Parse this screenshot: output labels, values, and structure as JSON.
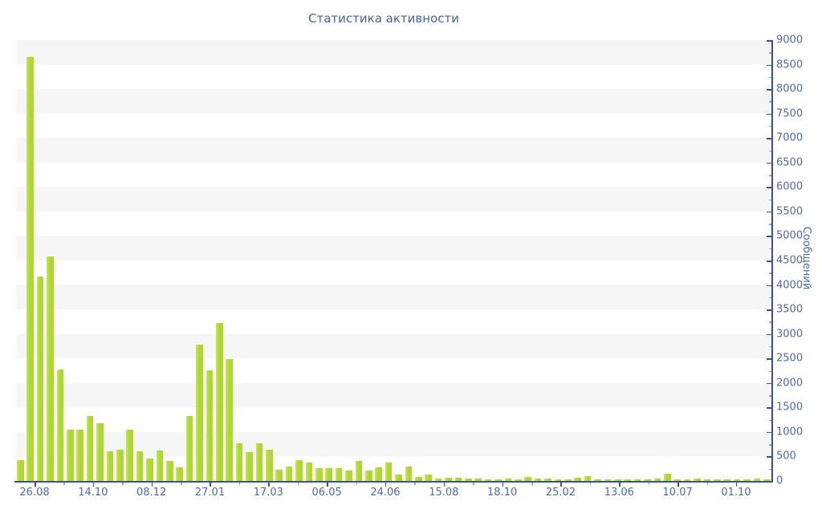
{
  "chart_data": {
    "type": "bar",
    "title": "Статистика активности",
    "ylabel": "Сообщений",
    "xlabel": "",
    "ylim": [
      0,
      9000
    ],
    "y_major_step": 500,
    "y_minor_step": 250,
    "grid": "striped-bands-every-500",
    "legend": "none",
    "y_tick_labels": [
      "0",
      "500",
      "1000",
      "1500",
      "2000",
      "2500",
      "3000",
      "3500",
      "4000",
      "4500",
      "5000",
      "5500",
      "6000",
      "6500",
      "7000",
      "7500",
      "8000",
      "8500",
      "9000"
    ],
    "x_tick_labels": [
      "26.08",
      "14.10",
      "08.12",
      "27.01",
      "17.03",
      "06.05",
      "24.06",
      "15.08",
      "18.10",
      "25.02",
      "13.06",
      "10.07",
      "01.10"
    ],
    "series_name": "Сообщений",
    "values": [
      420,
      8660,
      4170,
      4580,
      2280,
      1050,
      1050,
      1325,
      1180,
      600,
      640,
      1040,
      600,
      460,
      630,
      405,
      275,
      1320,
      2780,
      2260,
      3230,
      2480,
      765,
      585,
      775,
      640,
      235,
      290,
      420,
      375,
      260,
      260,
      260,
      215,
      405,
      215,
      280,
      380,
      130,
      295,
      80,
      135,
      45,
      60,
      60,
      45,
      45,
      32,
      32,
      45,
      32,
      90,
      45,
      45,
      32,
      38,
      70,
      100,
      38,
      32,
      32,
      32,
      32,
      32,
      55,
      140,
      32,
      32,
      55,
      32,
      32,
      32,
      32,
      32,
      55,
      32
    ],
    "colors": {
      "bar": "#aed72f",
      "bar_highlight": "#c7e65e",
      "axis": "#35539b",
      "labels": "#4b6bae",
      "title": "#4464a8",
      "stripe": "#f6f6f6"
    }
  }
}
